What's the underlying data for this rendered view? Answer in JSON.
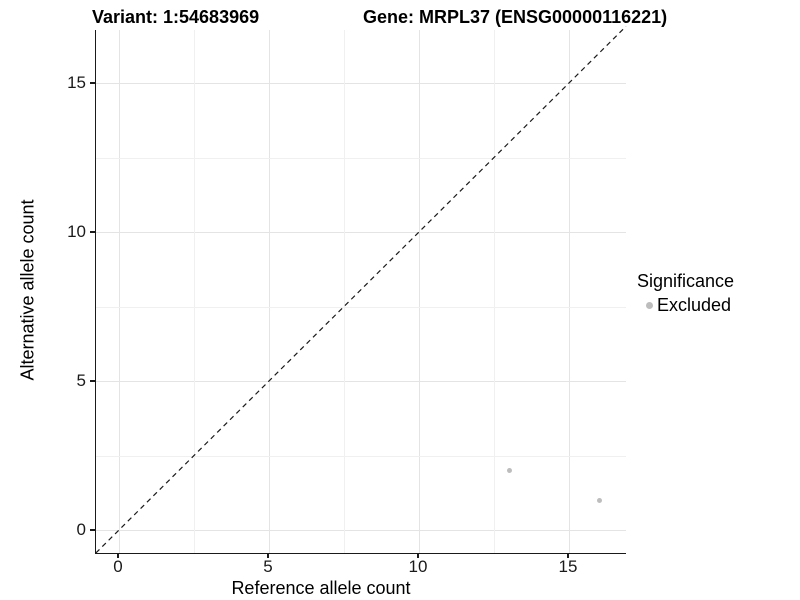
{
  "titles": {
    "variant": "Variant: 1:54683969",
    "gene": "Gene: MRPL37 (ENSG00000116221)"
  },
  "chart_data": {
    "type": "scatter",
    "title_left": "Variant: 1:54683969",
    "title_right": "Gene: MRPL37 (ENSG00000116221)",
    "xlabel": "Reference allele count",
    "ylabel": "Alternative allele count",
    "xlim": [
      -0.77,
      16.9
    ],
    "ylim": [
      -0.77,
      16.8
    ],
    "xticks": [
      0,
      5,
      10,
      15
    ],
    "yticks": [
      0,
      5,
      10,
      15
    ],
    "xminor": [
      2.5,
      7.5,
      12.5
    ],
    "yminor": [
      2.5,
      7.5,
      12.5
    ],
    "grid": true,
    "series": [
      {
        "name": "Excluded",
        "points": [
          [
            13,
            2
          ],
          [
            16,
            1
          ]
        ],
        "color": "#bdbdbd"
      }
    ],
    "reference_line": {
      "type": "identity",
      "style": "dashed",
      "color": "#1a1a1a"
    },
    "legend": {
      "title": "Significance",
      "position": "right",
      "items": [
        {
          "label": "Excluded",
          "color": "#bdbdbd"
        }
      ]
    }
  },
  "colors": {
    "background": "#ffffff",
    "axis_line": "#1a1a1a",
    "grid_major": "#e4e4e4",
    "grid_minor": "#f0f0f0",
    "point": "#bdbdbd",
    "text": "#000000"
  }
}
